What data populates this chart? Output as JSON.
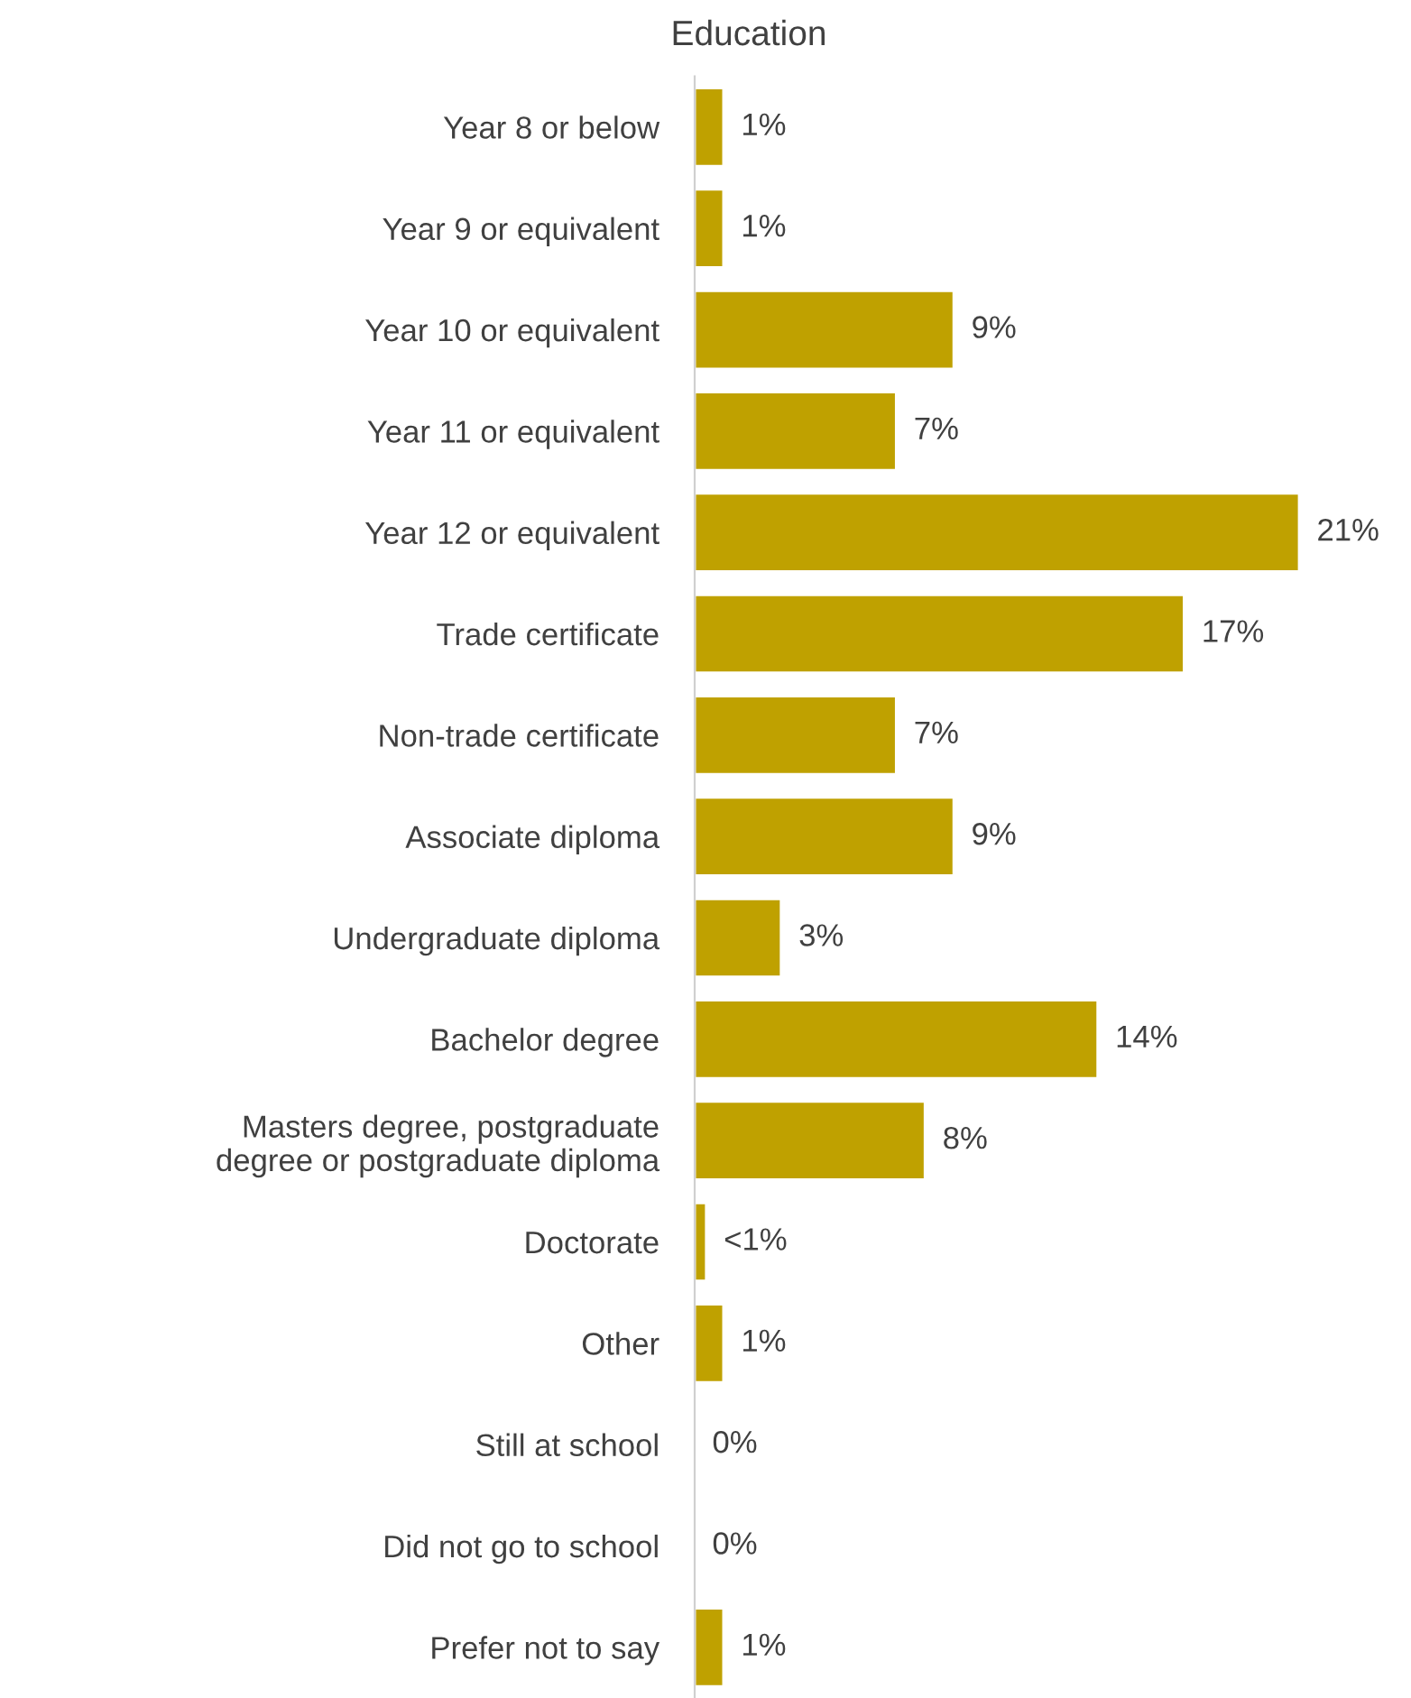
{
  "chart_data": {
    "type": "bar",
    "orientation": "horizontal",
    "title": "Education",
    "categories": [
      "Year 8 or below",
      "Year 9 or equivalent",
      "Year 10 or equivalent",
      "Year 11 or equivalent",
      "Year 12 or equivalent",
      "Trade certificate",
      "Non-trade certificate",
      "Associate diploma",
      "Undergraduate diploma",
      "Bachelor degree",
      "Masters degree, postgraduate\ndegree or postgraduate diploma",
      "Doctorate",
      "Other",
      "Still at school",
      "Did not go to school",
      "Prefer not to say"
    ],
    "values": [
      1,
      1,
      9,
      7,
      21,
      17,
      7,
      9,
      3,
      14,
      8,
      0.4,
      1,
      0,
      0,
      1
    ],
    "value_labels": [
      "1%",
      "1%",
      "9%",
      "7%",
      "21%",
      "17%",
      "7%",
      "9%",
      "3%",
      "14%",
      "8%",
      "<1%",
      "1%",
      "0%",
      "0%",
      "1%"
    ],
    "color": "#bfa100",
    "grid": false,
    "legend": false
  }
}
